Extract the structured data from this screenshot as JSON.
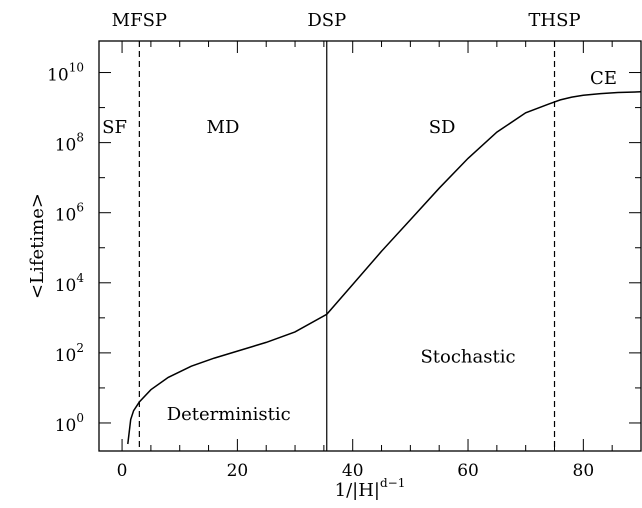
{
  "chart_data": {
    "type": "line",
    "title": "",
    "xlabel": "1/|H|",
    "xlabel_exponent": "d−1",
    "ylabel": "<Lifetime>",
    "xlim": [
      -4,
      90
    ],
    "ylim_log10": [
      -0.8,
      10.9
    ],
    "y_scale": "log",
    "x_ticks": [
      0,
      20,
      40,
      60,
      80
    ],
    "x_tick_labels": [
      "0",
      "20",
      "40",
      "60",
      "80"
    ],
    "y_ticks_log10": [
      0,
      2,
      4,
      6,
      8,
      10
    ],
    "y_tick_base": "10",
    "y_tick_exponents": [
      "0",
      "2",
      "4",
      "6",
      "8",
      "10"
    ],
    "grid": false,
    "series": [
      {
        "x": [
          1.0,
          1.5,
          2.0,
          3.0,
          5.0,
          8.0,
          12.0,
          16.0,
          20.0,
          25.0,
          30.0,
          35.5,
          40.0,
          45.0,
          50.0,
          55.0,
          60.0,
          65.0,
          70.0,
          74.0,
          76.0,
          78.0,
          80.0,
          83.0,
          86.0,
          90.0
        ],
        "log10_y": [
          -0.6,
          0.1,
          0.35,
          0.6,
          0.95,
          1.3,
          1.62,
          1.85,
          2.05,
          2.3,
          2.6,
          3.1,
          3.95,
          4.9,
          5.8,
          6.7,
          7.55,
          8.3,
          8.85,
          9.1,
          9.22,
          9.3,
          9.35,
          9.4,
          9.43,
          9.45
        ]
      }
    ],
    "vertical_lines": [
      {
        "x": 3,
        "style": "dashed",
        "label": "MFSP"
      },
      {
        "x": 35.5,
        "style": "solid",
        "label": "DSP"
      },
      {
        "x": 75,
        "style": "dashed",
        "label": "THSP"
      }
    ],
    "region_labels": [
      {
        "text": "SF",
        "x": -1.3,
        "log10_y": 8.45
      },
      {
        "text": "MD",
        "x": 17.5,
        "log10_y": 8.45
      },
      {
        "text": "SD",
        "x": 55.5,
        "log10_y": 8.45
      },
      {
        "text": "CE",
        "x": 83.5,
        "log10_y": 9.85
      },
      {
        "text": "Deterministic",
        "x": 18.5,
        "log10_y": 0.25
      },
      {
        "text": "Stochastic",
        "x": 60,
        "log10_y": 1.9
      }
    ]
  }
}
